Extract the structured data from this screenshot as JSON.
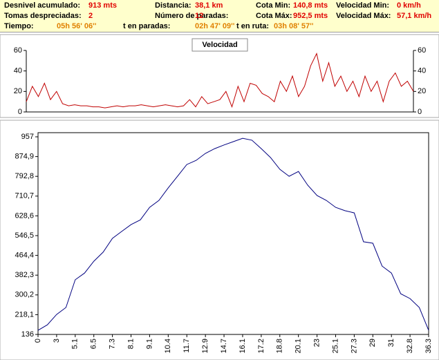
{
  "stats": [
    [
      {
        "label": "Desnivel acumulado:",
        "value": "913 mts"
      },
      {
        "label": "Distancia:",
        "value": "38,1 km"
      },
      {
        "label": "Cota Min:",
        "value": "140,8 mts"
      },
      {
        "label": "Velocidad Min:",
        "value": "0 km/h"
      }
    ],
    [
      {
        "label": "Tomas despreciadas:",
        "value": "2"
      },
      {
        "label": "Número de paradas:",
        "value": "12"
      },
      {
        "label": "Cota Máx:",
        "value": "952,5 mts"
      },
      {
        "label": "Velocidad Máx:",
        "value": "57,1 km/h"
      }
    ],
    [
      {
        "label": "Tiempo:",
        "value": "05h 56' 06''"
      },
      {
        "label": "t en paradas:",
        "value": "02h 47' 09''"
      },
      {
        "label": "t en ruta:",
        "value": "03h 08' 57''"
      }
    ]
  ],
  "chart_data": [
    {
      "type": "line",
      "title": "Velocidad",
      "color": "#c00000",
      "values": [
        10,
        25,
        15,
        28,
        12,
        20,
        8,
        6,
        7,
        6,
        6,
        5,
        5,
        4,
        5,
        6,
        5,
        6,
        6,
        7,
        6,
        5,
        6,
        7,
        6,
        5,
        6,
        12,
        5,
        15,
        8,
        10,
        12,
        20,
        5,
        25,
        10,
        28,
        26,
        18,
        15,
        10,
        30,
        20,
        35,
        15,
        25,
        45,
        57,
        30,
        48,
        25,
        35,
        20,
        30,
        15,
        35,
        20,
        30,
        10,
        30,
        38,
        25,
        30,
        20
      ],
      "ylim": [
        0,
        60
      ],
      "yticks": [
        0,
        20,
        40,
        60
      ]
    },
    {
      "type": "line",
      "color": "#000080",
      "categories": [
        "0",
        null,
        "3",
        null,
        "5.1",
        null,
        "6.5",
        null,
        "7.3",
        null,
        "8.1",
        null,
        "9.1",
        null,
        "10.4",
        null,
        "11.7",
        null,
        "12.9",
        null,
        "14.7",
        null,
        "16.1",
        null,
        "17.2",
        null,
        "18.8",
        null,
        "20.1",
        null,
        "23",
        null,
        "25.1",
        null,
        "27.3",
        null,
        "29",
        null,
        "31",
        null,
        "32.8",
        null,
        "36.3"
      ],
      "values": [
        153,
        176,
        219,
        248,
        363,
        391,
        440,
        478,
        535,
        564,
        592,
        612,
        664,
        693,
        745,
        793,
        842,
        859,
        888,
        908,
        923,
        937,
        951,
        943,
        908,
        871,
        822,
        793,
        813,
        756,
        713,
        693,
        664,
        650,
        641,
        521,
        515,
        420,
        391,
        305,
        285,
        248,
        153
      ],
      "ylim": [
        136,
        957
      ],
      "yticks": [
        136,
        {
          "value": 218.1,
          "label": "218,1"
        },
        {
          "value": 300.2,
          "label": "300,2"
        },
        {
          "value": 382.3,
          "label": "382,3"
        },
        {
          "value": 464.4,
          "label": "464,4"
        },
        {
          "value": 546.5,
          "label": "546,5"
        },
        {
          "value": 628.6,
          "label": "628,6"
        },
        {
          "value": 710.7,
          "label": "710,7"
        },
        {
          "value": 792.8,
          "label": "792,8"
        },
        {
          "value": 874.9,
          "label": "874,9"
        },
        957
      ]
    }
  ]
}
